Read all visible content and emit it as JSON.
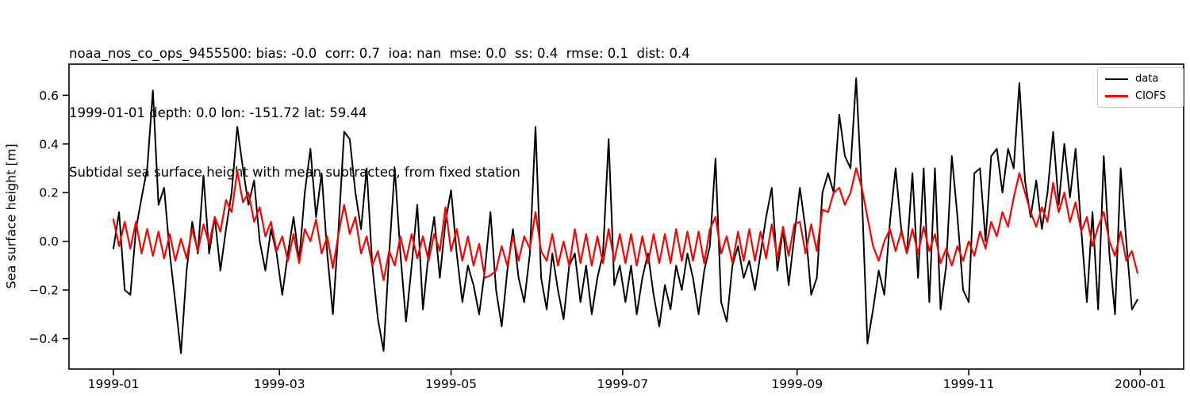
{
  "figure": {
    "title_line1": "noaa_nos_co_ops_9455500: bias: -0.0  corr: 0.7  ioa: nan  mse: 0.0  ss: 0.4  rmse: 0.1  dist: 0.4",
    "title_line2": "1999-01-01 depth: 0.0 lon: -151.72 lat: 59.44",
    "title_line3": "Subtidal sea surface height with mean subtracted, from fixed station"
  },
  "station_info": {
    "station_id": "noaa_nos_co_ops_9455500",
    "bias": "-0.0",
    "corr": "0.7",
    "ioa": "nan",
    "mse": "0.0",
    "ss": "0.4",
    "rmse": "0.1",
    "dist": "0.4",
    "date": "1999-01-01",
    "depth": "0.0",
    "lon": "-151.72",
    "lat": "59.44"
  },
  "chart_data": {
    "type": "line",
    "title": "noaa_nos_co_ops_9455500: bias: -0.0  corr: 0.7  ioa: nan  mse: 0.0  ss: 0.4  rmse: 0.1  dist: 0.4\n1999-01-01 depth: 0.0 lon: -151.72 lat: 59.44\nSubtidal sea surface height with mean subtracted, from fixed station",
    "xlabel": "",
    "ylabel": "Sea surface height [m]",
    "grid": false,
    "x_tick_labels": [
      "1999-01",
      "1999-03",
      "1999-05",
      "1999-07",
      "1999-09",
      "1999-11",
      "2000-01"
    ],
    "x_tick_days": [
      0,
      59,
      120,
      181,
      243,
      304,
      365
    ],
    "y_ticks": [
      0.6,
      0.4,
      0.2,
      0.0,
      -0.2,
      -0.4
    ],
    "y_tick_labels": [
      "0.6",
      "0.4",
      "0.2",
      "0.0",
      "−0.2",
      "−0.4"
    ],
    "xlim_days": [
      -15.8,
      380.4
    ],
    "ylim": [
      -0.525,
      0.728
    ],
    "legend": {
      "position": "upper right",
      "entries": [
        {
          "label": "data",
          "color": "#000000",
          "line_width": 2.5
        },
        {
          "label": "CIOFS",
          "color": "#ff0000",
          "line_width": 3
        }
      ]
    },
    "series": [
      {
        "name": "data",
        "color": "#000000",
        "line_width": 2,
        "day_start": 0,
        "day_step": 2,
        "values": [
          -0.03,
          0.12,
          -0.2,
          -0.22,
          0.05,
          0.18,
          0.3,
          0.62,
          0.15,
          0.22,
          -0.05,
          -0.25,
          -0.46,
          -0.12,
          0.08,
          -0.05,
          0.27,
          -0.05,
          0.1,
          -0.12,
          0.05,
          0.2,
          0.47,
          0.3,
          0.15,
          0.25,
          0.0,
          -0.12,
          0.05,
          -0.05,
          -0.22,
          -0.05,
          0.1,
          -0.08,
          0.2,
          0.38,
          0.1,
          0.28,
          -0.05,
          -0.3,
          0.05,
          0.45,
          0.42,
          0.2,
          0.05,
          0.3,
          -0.1,
          -0.32,
          -0.45,
          -0.05,
          0.3,
          -0.05,
          -0.33,
          -0.1,
          0.15,
          -0.28,
          -0.05,
          0.1,
          -0.15,
          0.08,
          0.21,
          -0.05,
          -0.25,
          -0.1,
          -0.18,
          -0.3,
          -0.12,
          0.12,
          -0.2,
          -0.35,
          -0.12,
          0.05,
          -0.15,
          -0.25,
          -0.05,
          0.47,
          -0.15,
          -0.28,
          -0.05,
          -0.2,
          -0.32,
          -0.1,
          -0.05,
          -0.25,
          -0.1,
          -0.3,
          -0.15,
          -0.05,
          0.42,
          -0.18,
          -0.1,
          -0.25,
          -0.1,
          -0.3,
          -0.15,
          -0.05,
          -0.22,
          -0.35,
          -0.18,
          -0.28,
          -0.1,
          -0.2,
          -0.05,
          -0.15,
          -0.3,
          -0.12,
          -0.02,
          0.34,
          -0.25,
          -0.33,
          -0.1,
          -0.02,
          -0.15,
          -0.08,
          -0.2,
          -0.05,
          0.1,
          0.22,
          -0.12,
          0.05,
          -0.18,
          0.02,
          0.22,
          0.05,
          -0.22,
          -0.15,
          0.2,
          0.28,
          0.2,
          0.52,
          0.35,
          0.3,
          0.67,
          0.2,
          -0.42,
          -0.28,
          -0.12,
          -0.22,
          0.08,
          0.3,
          0.05,
          -0.05,
          0.28,
          -0.15,
          0.3,
          -0.25,
          0.3,
          -0.28,
          -0.1,
          0.35,
          0.1,
          -0.2,
          -0.25,
          0.28,
          0.3,
          0.0,
          0.35,
          0.38,
          0.2,
          0.38,
          0.3,
          0.65,
          0.25,
          0.1,
          0.25,
          0.05,
          0.2,
          0.45,
          0.15,
          0.4,
          0.18,
          0.38,
          0.05,
          -0.25,
          0.12,
          -0.28,
          0.35,
          -0.05,
          -0.3,
          0.3,
          0.0,
          -0.28,
          -0.24
        ]
      },
      {
        "name": "CIOFS",
        "color": "#ff0000",
        "line_width": 2.2,
        "day_start": 0,
        "day_step": 2,
        "values": [
          0.09,
          -0.02,
          0.08,
          -0.03,
          0.08,
          -0.05,
          0.05,
          -0.06,
          0.04,
          -0.07,
          0.03,
          -0.08,
          0.01,
          -0.07,
          0.05,
          -0.04,
          0.07,
          -0.01,
          0.1,
          0.04,
          0.17,
          0.12,
          0.29,
          0.16,
          0.2,
          0.08,
          0.14,
          0.02,
          0.08,
          -0.04,
          0.02,
          -0.08,
          0.03,
          -0.09,
          0.05,
          0.0,
          0.09,
          -0.05,
          0.02,
          -0.11,
          0.03,
          0.15,
          0.03,
          0.1,
          -0.05,
          0.02,
          -0.1,
          -0.04,
          -0.16,
          -0.04,
          -0.1,
          0.02,
          -0.08,
          0.03,
          -0.07,
          0.02,
          -0.08,
          0.03,
          -0.04,
          0.14,
          -0.04,
          0.05,
          -0.08,
          0.02,
          -0.1,
          -0.01,
          -0.15,
          -0.14,
          -0.12,
          -0.02,
          -0.1,
          0.02,
          -0.08,
          0.02,
          -0.03,
          0.12,
          -0.04,
          -0.08,
          0.03,
          -0.1,
          0.0,
          -0.1,
          0.05,
          -0.09,
          0.03,
          -0.1,
          0.02,
          -0.09,
          0.05,
          -0.08,
          0.03,
          -0.09,
          0.03,
          -0.1,
          0.02,
          -0.09,
          0.03,
          -0.09,
          0.03,
          -0.09,
          0.05,
          -0.08,
          0.04,
          -0.08,
          0.04,
          -0.09,
          0.05,
          0.1,
          -0.05,
          0.02,
          -0.09,
          0.04,
          -0.08,
          0.05,
          -0.08,
          0.04,
          -0.07,
          0.07,
          -0.07,
          0.06,
          -0.06,
          0.07,
          0.08,
          -0.05,
          0.07,
          -0.04,
          0.13,
          0.12,
          0.2,
          0.22,
          0.15,
          0.2,
          0.3,
          0.22,
          0.1,
          -0.02,
          -0.08,
          0.0,
          0.05,
          -0.04,
          0.04,
          -0.05,
          0.05,
          -0.05,
          0.06,
          -0.04,
          0.03,
          -0.09,
          -0.03,
          -0.1,
          -0.02,
          -0.08,
          0.0,
          -0.06,
          0.04,
          -0.03,
          0.08,
          0.02,
          0.12,
          0.06,
          0.18,
          0.28,
          0.2,
          0.12,
          0.06,
          0.14,
          0.08,
          0.24,
          0.12,
          0.2,
          0.08,
          0.16,
          0.04,
          0.1,
          -0.02,
          0.06,
          0.12,
          0.0,
          -0.06,
          0.04,
          -0.08,
          -0.04,
          -0.13
        ]
      }
    ]
  }
}
